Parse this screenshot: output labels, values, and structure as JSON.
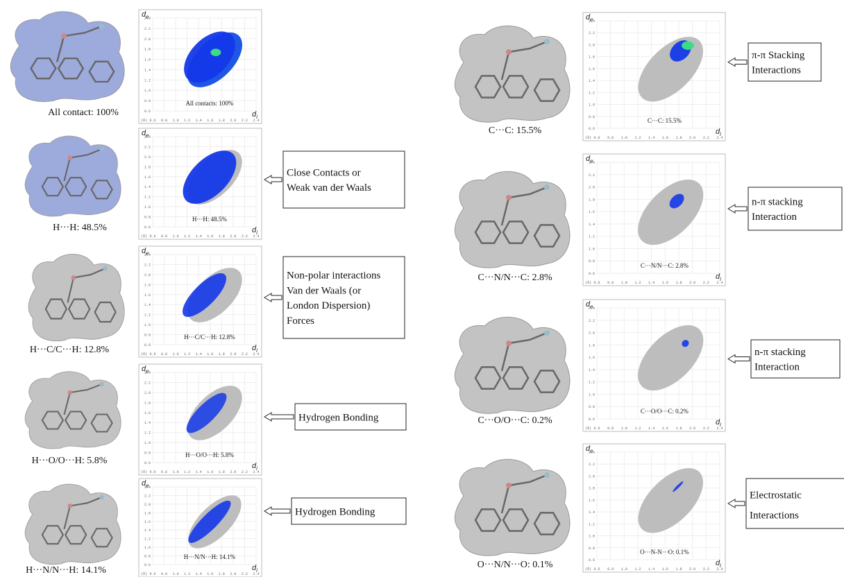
{
  "axes": {
    "y_label": "d",
    "y_sub": "e",
    "x_label": "d",
    "x_sub": "i",
    "unit": "(Å)",
    "yticks": [
      "2.4",
      "2.2",
      "2.0",
      "1.8",
      "1.6",
      "1.4",
      "1.2",
      "1.0",
      "0.8",
      "0.6"
    ],
    "xticks": [
      "0.6",
      "0.8",
      "1.0",
      "1.2",
      "1.4",
      "1.6",
      "1.8",
      "2.0",
      "2.2",
      "2.4"
    ]
  },
  "panels": [
    {
      "surface_label": "All contact: 100%",
      "plot_label": "All contacts: 100%",
      "callout": []
    },
    {
      "surface_label": "H···H: 48.5%",
      "plot_label": "H···H: 48.5%",
      "callout": [
        "Close Contacts or",
        "Weak van der Waals"
      ]
    },
    {
      "surface_label": "H···C/C···H: 12.8%",
      "plot_label": "H···C/C···H: 12.8%",
      "callout": [
        "Non-polar interactions",
        "Van der Waals (or",
        "London Dispersion)",
        "Forces"
      ]
    },
    {
      "surface_label": "H···O/O···H: 5.8%",
      "plot_label": "H···O/O···H:  5.8%",
      "callout": [
        "Hydrogen Bonding"
      ]
    },
    {
      "surface_label": "H···N/N···H: 14.1%",
      "plot_label": "H···N/N···H: 14.1%",
      "callout": [
        "Hydrogen Bonding"
      ]
    },
    {
      "surface_label": "C···C: 15.5%",
      "plot_label": "C···C: 15.5%",
      "callout": [
        "π-π Stacking",
        "Interactions"
      ]
    },
    {
      "surface_label": "C···N/N···C: 2.8%",
      "plot_label": "C···N/N···C: 2.8%",
      "callout": [
        "n-π stacking",
        "Interaction"
      ]
    },
    {
      "surface_label": "C···O/O···C: 0.2%",
      "plot_label": "C···O/O···C: 0.2%",
      "callout": [
        "n-π stacking",
        "Interaction"
      ]
    },
    {
      "surface_label": "O···N/N···O: 0.1%",
      "plot_label": "O···N-N···O: 0.1%",
      "callout": [
        "Electrostatic",
        "Interactions"
      ]
    }
  ]
}
